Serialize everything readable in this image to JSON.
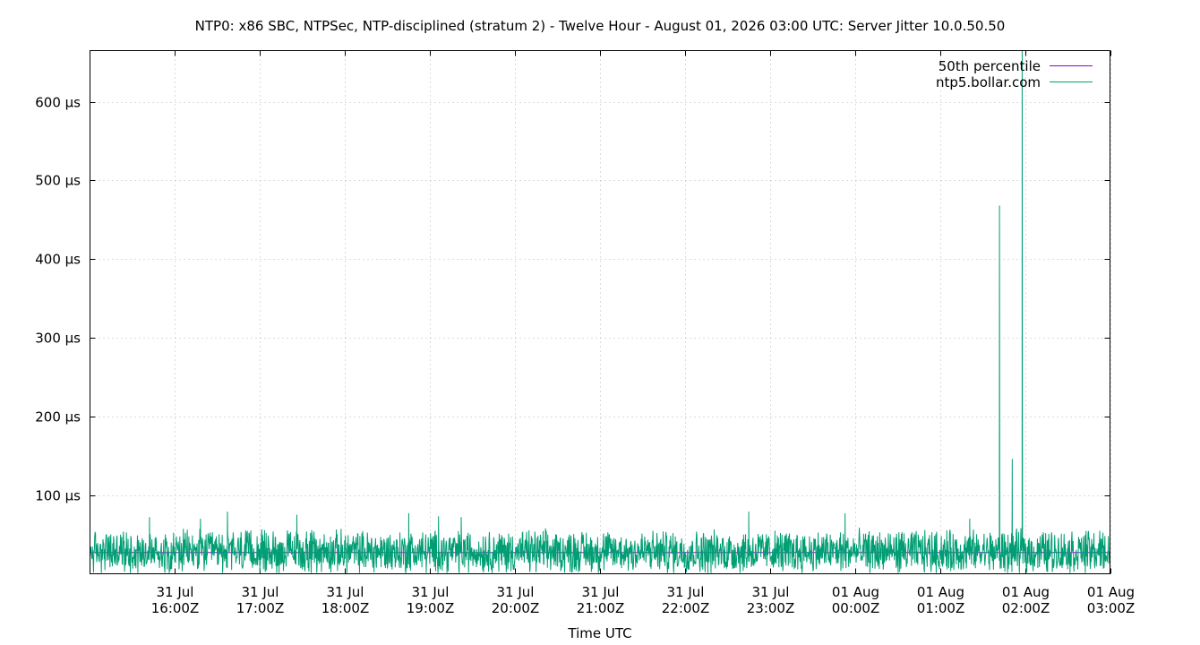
{
  "chart_data": {
    "type": "line",
    "title": "NTP0: x86 SBC, NTPSec, NTP-disciplined (stratum 2) - Twelve Hour - August 01, 2026 03:00 UTC: Server Jitter 10.0.50.50",
    "xlabel": "Time UTC",
    "ylabel": "",
    "xlim": [
      "2026-07-31T15:00Z",
      "2026-08-01T03:00Z"
    ],
    "ylim": [
      0,
      665
    ],
    "y_unit": "µs",
    "grid": true,
    "legend_position": "top-right",
    "x_ticks": [
      {
        "value": "2026-07-31T16:00Z",
        "line1": "31 Jul",
        "line2": "16:00Z"
      },
      {
        "value": "2026-07-31T17:00Z",
        "line1": "31 Jul",
        "line2": "17:00Z"
      },
      {
        "value": "2026-07-31T18:00Z",
        "line1": "31 Jul",
        "line2": "18:00Z"
      },
      {
        "value": "2026-07-31T19:00Z",
        "line1": "31 Jul",
        "line2": "19:00Z"
      },
      {
        "value": "2026-07-31T20:00Z",
        "line1": "31 Jul",
        "line2": "20:00Z"
      },
      {
        "value": "2026-07-31T21:00Z",
        "line1": "31 Jul",
        "line2": "21:00Z"
      },
      {
        "value": "2026-07-31T22:00Z",
        "line1": "31 Jul",
        "line2": "22:00Z"
      },
      {
        "value": "2026-07-31T23:00Z",
        "line1": "31 Jul",
        "line2": "23:00Z"
      },
      {
        "value": "2026-08-01T00:00Z",
        "line1": "01 Aug",
        "line2": "00:00Z"
      },
      {
        "value": "2026-08-01T01:00Z",
        "line1": "01 Aug",
        "line2": "01:00Z"
      },
      {
        "value": "2026-08-01T02:00Z",
        "line1": "01 Aug",
        "line2": "02:00Z"
      },
      {
        "value": "2026-08-01T03:00Z",
        "line1": "01 Aug",
        "line2": "03:00Z"
      }
    ],
    "y_ticks": [
      {
        "value": 100,
        "label": "100 µs"
      },
      {
        "value": 200,
        "label": "200 µs"
      },
      {
        "value": 300,
        "label": "300 µs"
      },
      {
        "value": 400,
        "label": "400 µs"
      },
      {
        "value": 500,
        "label": "500 µs"
      },
      {
        "value": 600,
        "label": "600 µs"
      }
    ],
    "series": [
      {
        "name": "50th percentile",
        "color": "#9400d3",
        "points": [
          [
            "2026-07-31T15:00Z",
            27
          ],
          [
            "2026-08-01T03:00Z",
            27
          ]
        ]
      },
      {
        "name": "ntp5.bollar.com",
        "color": "#009e73",
        "noise_baseline": 28,
        "points": [
          [
            "2026-07-31T15:00Z",
            25
          ],
          [
            "2026-07-31T15:42Z",
            72
          ],
          [
            "2026-07-31T16:00Z",
            28
          ],
          [
            "2026-07-31T16:18Z",
            70
          ],
          [
            "2026-07-31T16:37Z",
            79
          ],
          [
            "2026-07-31T17:00Z",
            30
          ],
          [
            "2026-07-31T17:26Z",
            75
          ],
          [
            "2026-07-31T18:00Z",
            26
          ],
          [
            "2026-07-31T18:45Z",
            77
          ],
          [
            "2026-07-31T19:06Z",
            73
          ],
          [
            "2026-07-31T19:22Z",
            72
          ],
          [
            "2026-07-31T20:00Z",
            27
          ],
          [
            "2026-07-31T21:00Z",
            29
          ],
          [
            "2026-07-31T22:00Z",
            26
          ],
          [
            "2026-07-31T22:45Z",
            79
          ],
          [
            "2026-07-31T23:00Z",
            28
          ],
          [
            "2026-07-31T23:53Z",
            77
          ],
          [
            "2026-08-01T00:30Z",
            30
          ],
          [
            "2026-08-01T01:00Z",
            27
          ],
          [
            "2026-08-01T01:21Z",
            70
          ],
          [
            "2026-08-01T01:42Z",
            468
          ],
          [
            "2026-08-01T01:51Z",
            146
          ],
          [
            "2026-08-01T01:58Z",
            665
          ],
          [
            "2026-08-01T02:30Z",
            32
          ],
          [
            "2026-08-01T03:00Z",
            66
          ]
        ]
      }
    ]
  }
}
